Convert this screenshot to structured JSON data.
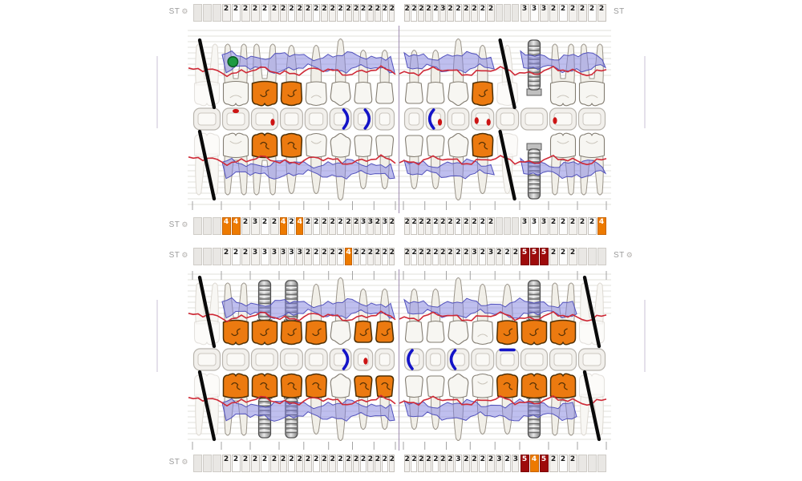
{
  "labels": {
    "st": "ST"
  },
  "colors": {
    "highlight_orange": "#ed7a00",
    "highlight_dark_red": "#9e0b0b",
    "crown_orange": "#ec7a10",
    "gingiva_band_fill": "#8080e0",
    "gingiva_line_red": "#cf2936",
    "caries_dot_red": "#cc1414",
    "clasp_blue": "#1414c8",
    "missing_slash_black": "#0a0a0a",
    "implant_gray": "#c0c0c0",
    "root_marker_green": "#1d9a42",
    "midline_purple": "#9b87ad"
  },
  "teeth": {
    "upper": [
      {
        "id": "18",
        "type": "molar",
        "status": "missing",
        "st_top": [
          "",
          "",
          ""
        ],
        "st_bottom": [
          "",
          "",
          ""
        ],
        "occlusal": []
      },
      {
        "id": "17",
        "type": "molar",
        "status": "present",
        "root_mark": "green-circle",
        "st_top": [
          "2",
          "2",
          "2"
        ],
        "st_bottom": [
          "4o",
          "4o",
          "2"
        ],
        "occlusal": [
          "dot-top"
        ]
      },
      {
        "id": "16",
        "type": "molar",
        "status": "present",
        "crown": "orange",
        "st_top": [
          "2",
          "2",
          "2"
        ],
        "st_bottom": [
          "3",
          "2",
          "2"
        ],
        "occlusal": [
          "dot-right"
        ]
      },
      {
        "id": "15",
        "type": "premolar",
        "status": "present",
        "crown": "orange",
        "st_top": [
          "2",
          "2",
          "2"
        ],
        "st_bottom": [
          "4o",
          "2",
          "4o"
        ],
        "occlusal": []
      },
      {
        "id": "14",
        "type": "premolar",
        "status": "present",
        "st_top": [
          "2",
          "2",
          "2"
        ],
        "st_bottom": [
          "2",
          "2",
          "2"
        ],
        "occlusal": []
      },
      {
        "id": "13",
        "type": "canine",
        "status": "present",
        "st_top": [
          "2",
          "2",
          "2"
        ],
        "st_bottom": [
          "2",
          "2",
          "2"
        ],
        "occlusal": [
          "clasp-right"
        ]
      },
      {
        "id": "12",
        "type": "incisor",
        "status": "present",
        "st_top": [
          "2",
          "2",
          "2"
        ],
        "st_bottom": [
          "2",
          "3",
          "3"
        ],
        "occlusal": [
          "clasp-right"
        ]
      },
      {
        "id": "11",
        "type": "incisor",
        "status": "present",
        "st_top": [
          "2",
          "2",
          "2"
        ],
        "st_bottom": [
          "2",
          "3",
          "2"
        ],
        "occlusal": []
      },
      {
        "id": "21",
        "type": "incisor",
        "status": "present",
        "st_top": [
          "2",
          "2",
          "2"
        ],
        "st_bottom": [
          "2",
          "2",
          "2"
        ],
        "occlusal": []
      },
      {
        "id": "22",
        "type": "incisor",
        "status": "present",
        "st_top": [
          "2",
          "2",
          "3"
        ],
        "st_bottom": [
          "2",
          "2",
          "2"
        ],
        "occlusal": [
          "clasp-left",
          "dot-right"
        ]
      },
      {
        "id": "23",
        "type": "canine",
        "status": "present",
        "st_top": [
          "2",
          "2",
          "2"
        ],
        "st_bottom": [
          "2",
          "2",
          "2"
        ],
        "occlusal": []
      },
      {
        "id": "24",
        "type": "premolar",
        "status": "present",
        "crown": "orange",
        "st_top": [
          "2",
          "2",
          "2"
        ],
        "st_bottom": [
          "2",
          "2",
          "2"
        ],
        "occlusal": [
          "dot-left",
          "dot-right"
        ]
      },
      {
        "id": "25",
        "type": "premolar",
        "status": "missing",
        "st_top": [
          "",
          "",
          ""
        ],
        "st_bottom": [
          "",
          "",
          ""
        ],
        "occlusal": []
      },
      {
        "id": "26",
        "type": "molar",
        "status": "implant",
        "st_top": [
          "3",
          "3",
          "3"
        ],
        "st_bottom": [
          "3",
          "3",
          "3"
        ],
        "occlusal": []
      },
      {
        "id": "27",
        "type": "molar",
        "status": "present",
        "st_top": [
          "2",
          "2",
          "2"
        ],
        "st_bottom": [
          "2",
          "2",
          "2"
        ],
        "occlusal": [
          "dot-left"
        ]
      },
      {
        "id": "28",
        "type": "molar",
        "status": "present",
        "st_top": [
          "2",
          "2",
          "2"
        ],
        "st_bottom": [
          "2",
          "2",
          "4o"
        ],
        "occlusal": []
      }
    ],
    "lower": [
      {
        "id": "48",
        "type": "molar",
        "status": "missing",
        "st_top": [
          "",
          "",
          ""
        ],
        "st_bottom": [
          "",
          "",
          ""
        ],
        "occlusal": []
      },
      {
        "id": "47",
        "type": "molar",
        "status": "present",
        "crown": "orange",
        "st_top": [
          "2",
          "2",
          "2"
        ],
        "st_bottom": [
          "2",
          "2",
          "2"
        ],
        "occlusal": []
      },
      {
        "id": "46",
        "type": "molar",
        "status": "implant",
        "crown": "orange",
        "st_top": [
          "3",
          "3",
          "3"
        ],
        "st_bottom": [
          "2",
          "2",
          "2"
        ],
        "occlusal": []
      },
      {
        "id": "45",
        "type": "premolar",
        "status": "implant",
        "crown": "orange",
        "st_top": [
          "3",
          "3",
          "3"
        ],
        "st_bottom": [
          "2",
          "2",
          "2"
        ],
        "occlusal": []
      },
      {
        "id": "44",
        "type": "premolar",
        "status": "present",
        "crown": "orange",
        "st_top": [
          "2",
          "2",
          "2"
        ],
        "st_bottom": [
          "2",
          "2",
          "2"
        ],
        "occlusal": []
      },
      {
        "id": "43",
        "type": "canine",
        "status": "present",
        "st_top": [
          "2",
          "2",
          "4o"
        ],
        "st_bottom": [
          "2",
          "2",
          "2"
        ],
        "occlusal": [
          "clasp-right"
        ]
      },
      {
        "id": "42",
        "type": "incisor",
        "status": "present",
        "crown": "orange",
        "st_top": [
          "2",
          "2",
          "2"
        ],
        "st_bottom": [
          "2",
          "2",
          "2"
        ],
        "occlusal": [
          "dot-center"
        ]
      },
      {
        "id": "41",
        "type": "incisor",
        "status": "present",
        "crown": "orange",
        "st_top": [
          "2",
          "2",
          "2"
        ],
        "st_bottom": [
          "2",
          "2",
          "2"
        ],
        "occlusal": []
      },
      {
        "id": "31",
        "type": "incisor",
        "status": "present",
        "st_top": [
          "2",
          "2",
          "2"
        ],
        "st_bottom": [
          "2",
          "2",
          "2"
        ],
        "occlusal": [
          "clasp-left"
        ]
      },
      {
        "id": "32",
        "type": "incisor",
        "status": "present",
        "st_top": [
          "2",
          "2",
          "2"
        ],
        "st_bottom": [
          "2",
          "2",
          "2"
        ],
        "occlusal": []
      },
      {
        "id": "33",
        "type": "canine",
        "status": "present",
        "st_top": [
          "2",
          "2",
          "2"
        ],
        "st_bottom": [
          "2",
          "3",
          "2"
        ],
        "occlusal": [
          "clasp-left"
        ]
      },
      {
        "id": "34",
        "type": "premolar",
        "status": "present",
        "st_top": [
          "3",
          "2",
          "3"
        ],
        "st_bottom": [
          "2",
          "2",
          "2"
        ],
        "occlusal": []
      },
      {
        "id": "35",
        "type": "premolar",
        "status": "present",
        "crown": "orange",
        "st_top": [
          "2",
          "2",
          "2"
        ],
        "st_bottom": [
          "3",
          "2",
          "3"
        ],
        "occlusal": [
          "line-top"
        ]
      },
      {
        "id": "36",
        "type": "molar",
        "status": "implant",
        "crown": "orange",
        "st_top": [
          "5r",
          "5r",
          "5r"
        ],
        "st_bottom": [
          "5r",
          "4o",
          "5r"
        ],
        "occlusal": []
      },
      {
        "id": "37",
        "type": "molar",
        "status": "present",
        "crown": "orange",
        "st_top": [
          "2",
          "2",
          "2"
        ],
        "st_bottom": [
          "2",
          "2",
          "2"
        ],
        "occlusal": []
      },
      {
        "id": "38",
        "type": "molar",
        "status": "missing",
        "st_top": [
          "",
          "",
          ""
        ],
        "st_bottom": [
          "",
          "",
          ""
        ],
        "occlusal": []
      }
    ]
  }
}
